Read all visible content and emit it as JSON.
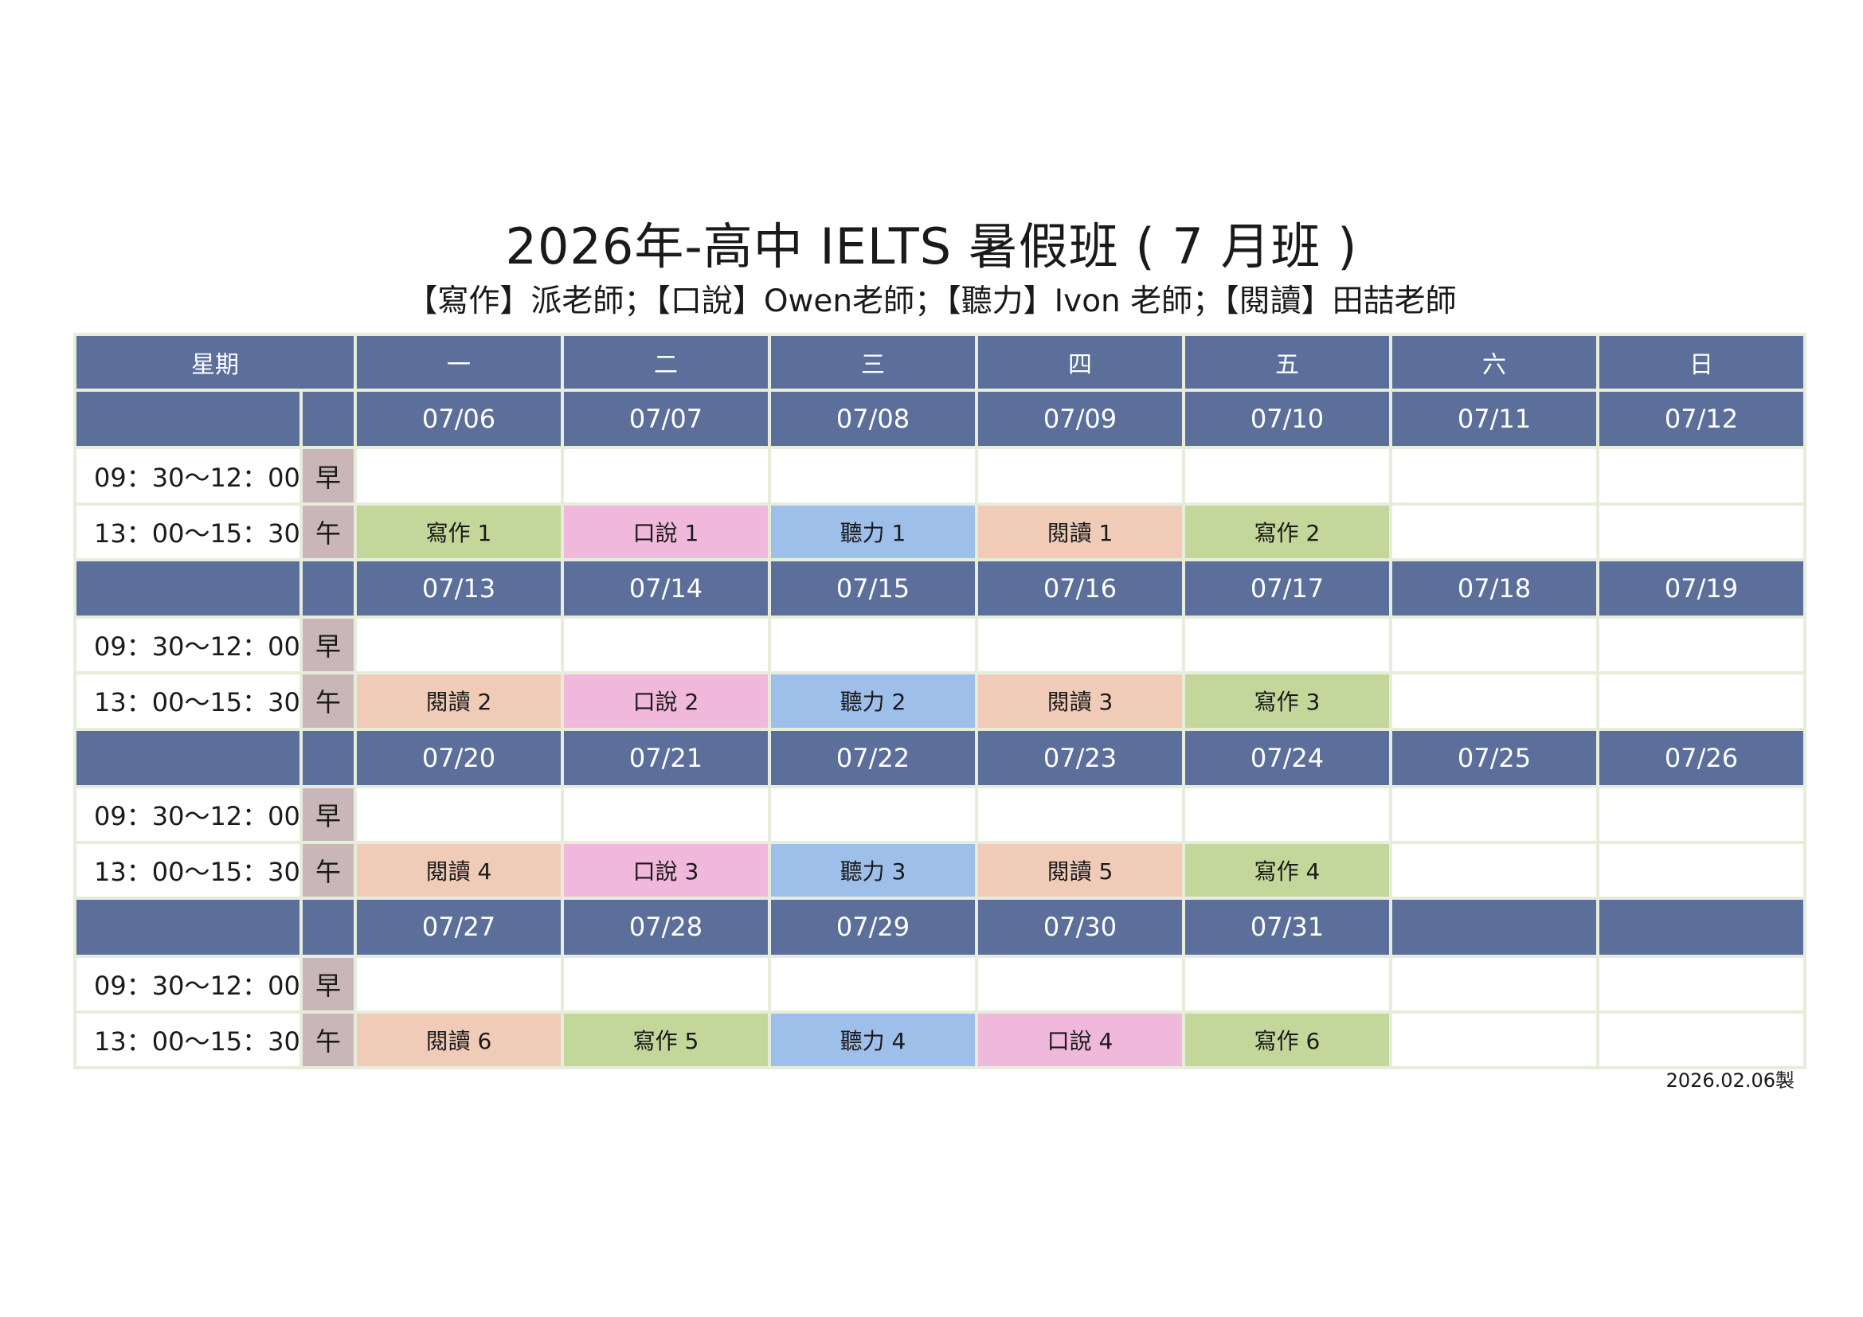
{
  "title": "2026年-高中 IELTS 暑假班 ( 7 月班 )",
  "subtitle": "【寫作】派老師；【口說】Owen老師；【聽力】Ivon 老師；【閱讀】田喆老師",
  "header": {
    "weekday_label": "星期",
    "days": [
      "一",
      "二",
      "三",
      "四",
      "五",
      "六",
      "日"
    ]
  },
  "slots": {
    "morning": {
      "time": "09：30～12：00",
      "label": "早"
    },
    "afternoon": {
      "time": "13：00～15：30",
      "label": "午"
    }
  },
  "subject_colors": {
    "寫作": "#c4d79b",
    "口說": "#f0b8da",
    "聽力": "#9dbfea",
    "閱讀": "#efcbb8"
  },
  "weeks": [
    {
      "dates": [
        "07/06",
        "07/07",
        "07/08",
        "07/09",
        "07/10",
        "07/11",
        "07/12"
      ],
      "morning": [
        "",
        "",
        "",
        "",
        "",
        "",
        ""
      ],
      "afternoon": [
        {
          "text": "寫作 1",
          "subject": "寫作"
        },
        {
          "text": "口說 1",
          "subject": "口說"
        },
        {
          "text": "聽力 1",
          "subject": "聽力"
        },
        {
          "text": "閱讀 1",
          "subject": "閱讀"
        },
        {
          "text": "寫作 2",
          "subject": "寫作"
        },
        {
          "text": "",
          "subject": ""
        },
        {
          "text": "",
          "subject": ""
        }
      ]
    },
    {
      "dates": [
        "07/13",
        "07/14",
        "07/15",
        "07/16",
        "07/17",
        "07/18",
        "07/19"
      ],
      "morning": [
        "",
        "",
        "",
        "",
        "",
        "",
        ""
      ],
      "afternoon": [
        {
          "text": "閱讀 2",
          "subject": "閱讀"
        },
        {
          "text": "口說 2",
          "subject": "口說"
        },
        {
          "text": "聽力 2",
          "subject": "聽力"
        },
        {
          "text": "閱讀 3",
          "subject": "閱讀"
        },
        {
          "text": "寫作 3",
          "subject": "寫作"
        },
        {
          "text": "",
          "subject": ""
        },
        {
          "text": "",
          "subject": ""
        }
      ]
    },
    {
      "dates": [
        "07/20",
        "07/21",
        "07/22",
        "07/23",
        "07/24",
        "07/25",
        "07/26"
      ],
      "morning": [
        "",
        "",
        "",
        "",
        "",
        "",
        ""
      ],
      "afternoon": [
        {
          "text": "閱讀 4",
          "subject": "閱讀"
        },
        {
          "text": "口說 3",
          "subject": "口說"
        },
        {
          "text": "聽力 3",
          "subject": "聽力"
        },
        {
          "text": "閱讀 5",
          "subject": "閱讀"
        },
        {
          "text": "寫作 4",
          "subject": "寫作"
        },
        {
          "text": "",
          "subject": ""
        },
        {
          "text": "",
          "subject": ""
        }
      ]
    },
    {
      "dates": [
        "07/27",
        "07/28",
        "07/29",
        "07/30",
        "07/31",
        "",
        ""
      ],
      "morning": [
        "",
        "",
        "",
        "",
        "",
        "",
        ""
      ],
      "afternoon": [
        {
          "text": "閱讀 6",
          "subject": "閱讀"
        },
        {
          "text": "寫作 5",
          "subject": "寫作"
        },
        {
          "text": "聽力 4",
          "subject": "聽力"
        },
        {
          "text": "口說 4",
          "subject": "口說"
        },
        {
          "text": "寫作 6",
          "subject": "寫作"
        },
        {
          "text": "",
          "subject": ""
        },
        {
          "text": "",
          "subject": ""
        }
      ]
    }
  ],
  "footer": {
    "made_date": "2026.02.06製"
  }
}
